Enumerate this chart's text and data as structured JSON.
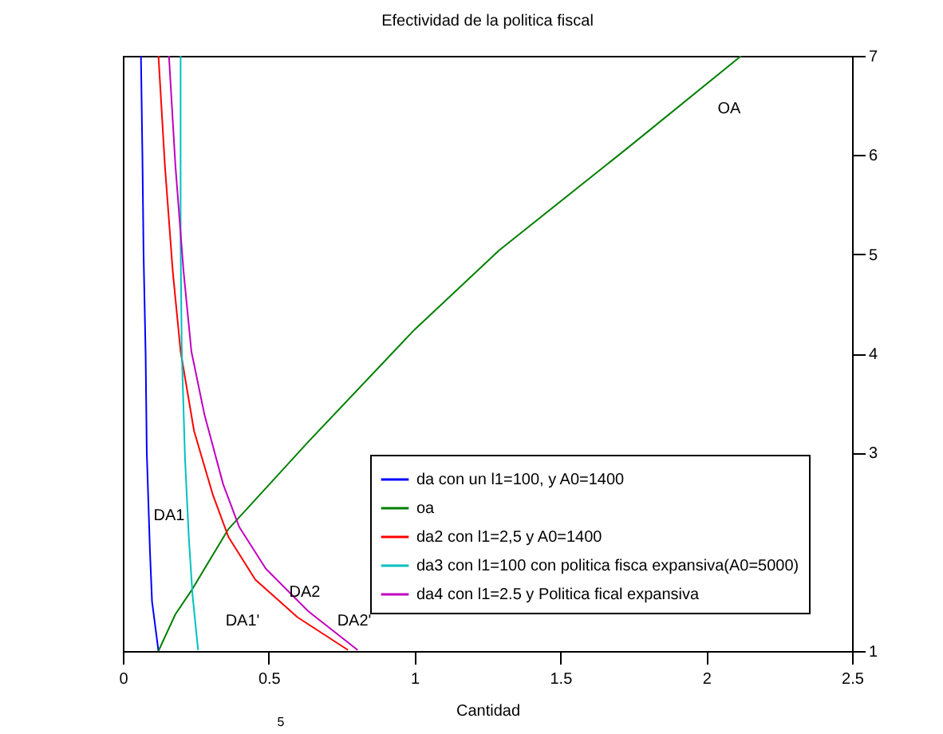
{
  "chart_data": {
    "type": "line",
    "title": "Efectividad de la politica fiscal",
    "xlabel": "Cantidad",
    "xlim": [
      0,
      2.5
    ],
    "xticks": [
      0,
      0.5,
      1,
      1.5,
      2,
      2.5
    ],
    "ylim": [
      1,
      7
    ],
    "yticks": [
      1,
      3,
      4,
      5,
      6,
      7
    ],
    "grid": false,
    "legend": "bottom right",
    "marker": "none",
    "line_style": "solid",
    "series": [
      {
        "name": "da con un l1=100, y A0=1400",
        "color": "#0000ff",
        "x": [
          0.062,
          0.067,
          0.071,
          0.078,
          0.082,
          0.093,
          0.1,
          0.122
        ],
        "values": [
          7,
          6,
          5,
          4,
          3,
          2,
          1.5,
          1
        ]
      },
      {
        "name": "oa",
        "color": "#008000",
        "x": [
          0.122,
          0.18,
          0.235,
          0.362,
          0.636,
          1.0,
          1.29,
          1.73,
          2.12
        ],
        "values": [
          1,
          1.37,
          1.61,
          2.23,
          3.11,
          4.24,
          5.04,
          6.07,
          7
        ]
      },
      {
        "name": "da2 con l1=2,5 y A0=1400",
        "color": "#ff0000",
        "x": [
          0.122,
          0.144,
          0.171,
          0.198,
          0.244,
          0.308,
          0.362,
          0.454,
          0.599,
          0.772
        ],
        "values": [
          7,
          5.9,
          4.83,
          4.02,
          3.22,
          2.58,
          2.15,
          1.72,
          1.34,
          1.01
        ]
      },
      {
        "name": "da3 con l1=100 con politica fisca expansiva(A0=5000)",
        "color": "#00c0c0",
        "x": [
          0.198,
          0.198,
          0.202,
          0.213,
          0.226,
          0.239,
          0.258
        ],
        "values": [
          7,
          5.1,
          4.02,
          2.95,
          2.15,
          1.56,
          1.01
        ]
      },
      {
        "name": "da4 con l1=2.5 y Politica fical expansiva",
        "color": "#c000c0",
        "x": [
          0.158,
          0.18,
          0.208,
          0.235,
          0.28,
          0.344,
          0.399,
          0.49,
          0.636,
          0.805
        ],
        "values": [
          7,
          5.9,
          4.83,
          4.02,
          3.38,
          2.68,
          2.25,
          1.83,
          1.4,
          1.01
        ]
      }
    ],
    "annotations": [
      "DA1",
      "DA1'",
      "DA2",
      "DA2'",
      "OA",
      "5"
    ]
  }
}
